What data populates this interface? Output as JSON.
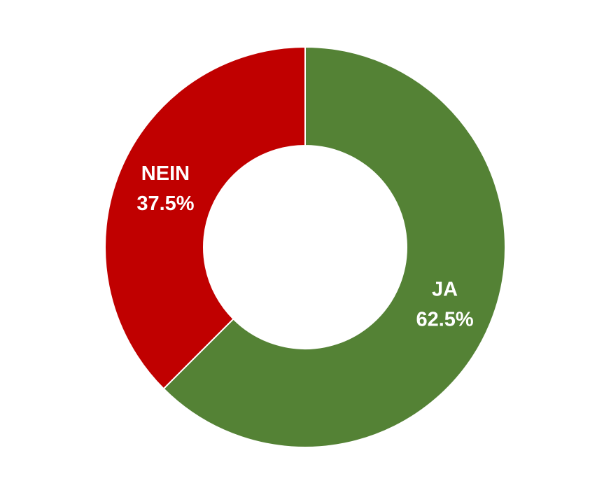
{
  "chart_data": {
    "type": "donut",
    "categories": [
      "JA",
      "NEIN"
    ],
    "values": [
      62.5,
      37.5
    ],
    "value_labels": [
      "62.5%",
      "37.5%"
    ],
    "colors": [
      "#548235",
      "#c00000"
    ]
  }
}
